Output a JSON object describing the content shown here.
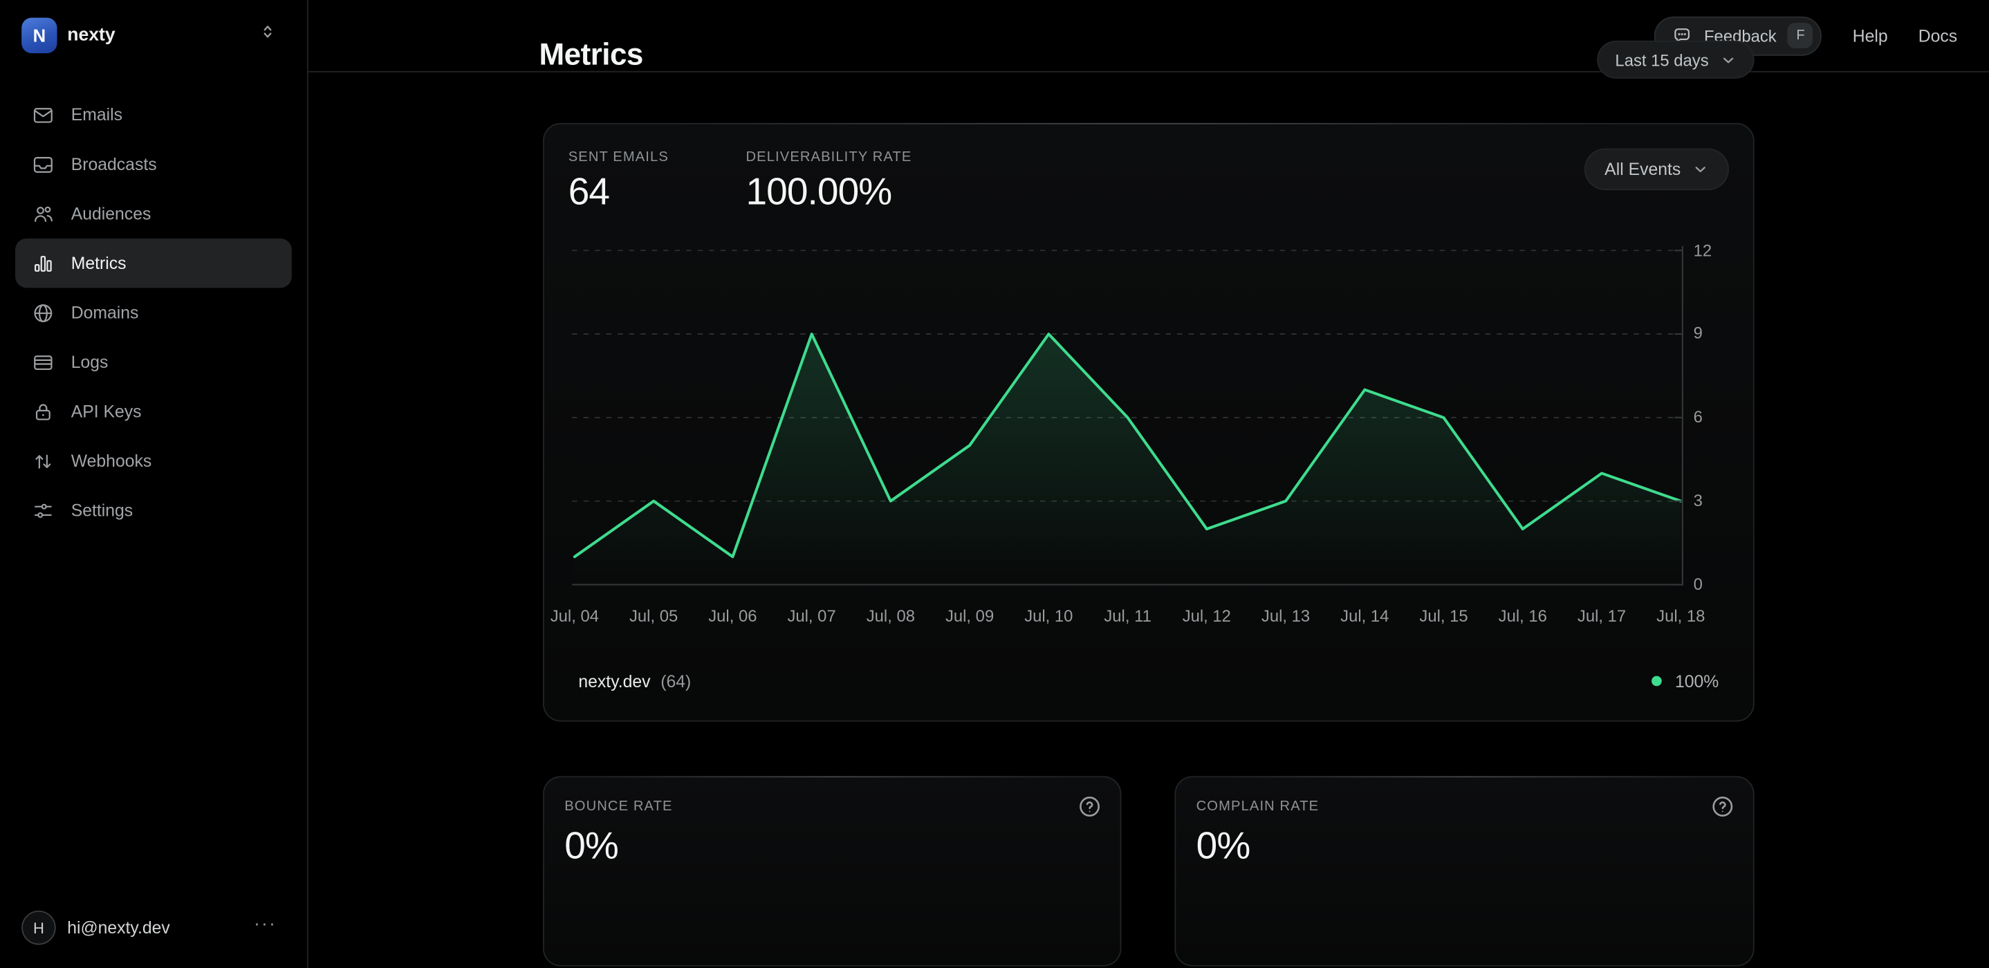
{
  "sidebar": {
    "logo_letter": "N",
    "workspace": "nexty",
    "items": [
      {
        "label": "Emails",
        "icon": "envelope-icon"
      },
      {
        "label": "Broadcasts",
        "icon": "inbox-icon"
      },
      {
        "label": "Audiences",
        "icon": "users-icon"
      },
      {
        "label": "Metrics",
        "icon": "bar-chart-icon"
      },
      {
        "label": "Domains",
        "icon": "globe-icon"
      },
      {
        "label": "Logs",
        "icon": "rows-icon"
      },
      {
        "label": "API Keys",
        "icon": "lock-icon"
      },
      {
        "label": "Webhooks",
        "icon": "arrows-up-down-icon"
      },
      {
        "label": "Settings",
        "icon": "sliders-icon"
      }
    ],
    "active_item": "Metrics",
    "user": {
      "initial": "H",
      "email": "hi@nexty.dev",
      "more": "···"
    }
  },
  "header": {
    "feedback_label": "Feedback",
    "feedback_key": "F",
    "help_label": "Help",
    "docs_label": "Docs"
  },
  "main": {
    "title": "Metrics",
    "range_selector": "Last 15 days",
    "events_selector": "All Events"
  },
  "stats": {
    "sent": {
      "label": "SENT EMAILS",
      "value": "64"
    },
    "deliverability": {
      "label": "DELIVERABILITY RATE",
      "value": "100.00%"
    }
  },
  "legend": {
    "domain": "nexty.dev",
    "count": "(64)",
    "rate": "100%"
  },
  "bottom_cards": [
    {
      "label": "BOUNCE RATE",
      "value": "0%"
    },
    {
      "label": "COMPLAIN RATE",
      "value": "0%"
    }
  ],
  "colors": {
    "accent_green": "#3edc8e",
    "grid": "#2e3133",
    "axis": "#333638"
  },
  "chart_data": {
    "type": "area",
    "title": "Sent emails per day",
    "x": [
      "Jul, 04",
      "Jul, 05",
      "Jul, 06",
      "Jul, 07",
      "Jul, 08",
      "Jul, 09",
      "Jul, 10",
      "Jul, 11",
      "Jul, 12",
      "Jul, 13",
      "Jul, 14",
      "Jul, 15",
      "Jul, 16",
      "Jul, 17",
      "Jul, 18"
    ],
    "series": [
      {
        "name": "nexty.dev",
        "total": 64,
        "values": [
          1,
          3,
          1,
          9,
          3,
          5,
          9,
          6,
          2,
          3,
          7,
          6,
          2,
          4,
          3
        ]
      }
    ],
    "ylim": [
      0,
      12
    ],
    "yticks": [
      0,
      3,
      6,
      9,
      12
    ],
    "xlabel": "",
    "ylabel": "",
    "grid": "dashed-horizontal",
    "yaxis_position": "right",
    "legend_position": "bottom",
    "line_color": "#3edc8e"
  }
}
